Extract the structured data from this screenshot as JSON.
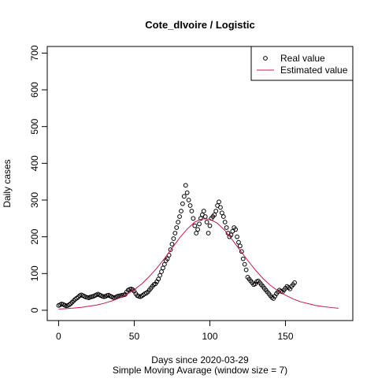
{
  "chart_data": {
    "type": "scatter",
    "title": "Cote_dIvoire / Logistic",
    "x_label": "Days since 2020-03-29",
    "subtitle": "Simple Moving Avarage (window size = 7)",
    "y_label": "Daily cases",
    "xlim": [
      -7.5,
      194.5
    ],
    "xticks": [
      0,
      50,
      100,
      150
    ],
    "ylim": [
      -28,
      718
    ],
    "yticks": [
      0,
      100,
      200,
      300,
      400,
      500,
      600,
      700
    ],
    "legend": "topright",
    "series": [
      {
        "name": "Real value",
        "color": "#000000",
        "style": "points",
        "x": [
          0,
          1,
          2,
          3,
          4,
          5,
          6,
          7,
          8,
          9,
          10,
          11,
          12,
          13,
          14,
          15,
          16,
          17,
          18,
          19,
          20,
          21,
          22,
          23,
          24,
          25,
          26,
          27,
          28,
          29,
          30,
          31,
          32,
          33,
          34,
          35,
          36,
          37,
          38,
          39,
          40,
          41,
          42,
          43,
          44,
          45,
          46,
          47,
          48,
          49,
          50,
          51,
          52,
          53,
          54,
          55,
          56,
          57,
          58,
          59,
          60,
          61,
          62,
          63,
          64,
          65,
          66,
          67,
          68,
          69,
          70,
          71,
          72,
          73,
          74,
          75,
          76,
          77,
          78,
          79,
          80,
          81,
          82,
          83,
          84,
          85,
          86,
          87,
          88,
          89,
          90,
          91,
          92,
          93,
          94,
          95,
          96,
          97,
          98,
          99,
          100,
          101,
          102,
          103,
          104,
          105,
          106,
          107,
          108,
          109,
          110,
          111,
          112,
          113,
          114,
          115,
          116,
          117,
          118,
          119,
          120,
          121,
          122,
          123,
          124,
          125,
          126,
          127,
          128,
          129,
          130,
          131,
          132,
          133,
          134,
          135,
          136,
          137,
          138,
          139,
          140,
          141,
          142,
          143,
          144,
          145,
          146,
          147,
          148,
          149,
          150,
          151,
          152,
          153,
          154,
          155,
          156
        ],
        "values": [
          13,
          15,
          17,
          16,
          14,
          12,
          13,
          15,
          18,
          22,
          26,
          30,
          33,
          36,
          40,
          42,
          40,
          38,
          36,
          35,
          34,
          36,
          37,
          38,
          40,
          42,
          44,
          42,
          40,
          38,
          37,
          38,
          40,
          41,
          39,
          37,
          35,
          34,
          36,
          38,
          39,
          40,
          41,
          42,
          43,
          50,
          55,
          57,
          58,
          56,
          52,
          45,
          40,
          38,
          37,
          39,
          42,
          45,
          47,
          50,
          55,
          60,
          65,
          70,
          72,
          78,
          85,
          95,
          105,
          115,
          125,
          135,
          140,
          150,
          165,
          180,
          195,
          210,
          225,
          240,
          255,
          270,
          290,
          310,
          340,
          320,
          300,
          285,
          270,
          250,
          230,
          210,
          220,
          235,
          250,
          260,
          270,
          255,
          240,
          210,
          230,
          250,
          255,
          260,
          270,
          285,
          295,
          280,
          265,
          255,
          240,
          225,
          210,
          200,
          205,
          215,
          225,
          220,
          200,
          185,
          175,
          160,
          140,
          125,
          110,
          90,
          85,
          80,
          75,
          70,
          72,
          78,
          80,
          75,
          70,
          65,
          60,
          55,
          50,
          45,
          40,
          35,
          32,
          38,
          45,
          50,
          55,
          52,
          50,
          55,
          60,
          65,
          62,
          58,
          65,
          70,
          75
        ]
      },
      {
        "name": "Estimated value",
        "color": "#c71c4a",
        "style": "line",
        "x": [
          0,
          5,
          10,
          15,
          20,
          25,
          30,
          35,
          40,
          45,
          50,
          55,
          60,
          65,
          70,
          75,
          80,
          85,
          90,
          95,
          100,
          105,
          110,
          115,
          120,
          125,
          130,
          135,
          140,
          145,
          150,
          155,
          160,
          165,
          170,
          175,
          180,
          185
        ],
        "values": [
          3.3,
          4.5,
          6,
          8,
          11,
          14,
          19,
          25,
          33,
          43,
          56,
          72,
          92,
          115,
          141,
          169,
          197,
          221,
          240,
          249,
          248,
          237,
          217,
          191,
          163,
          136,
          110,
          87,
          68,
          53,
          41,
          31,
          23,
          18,
          13,
          10,
          7.5,
          5.6
        ]
      }
    ]
  }
}
